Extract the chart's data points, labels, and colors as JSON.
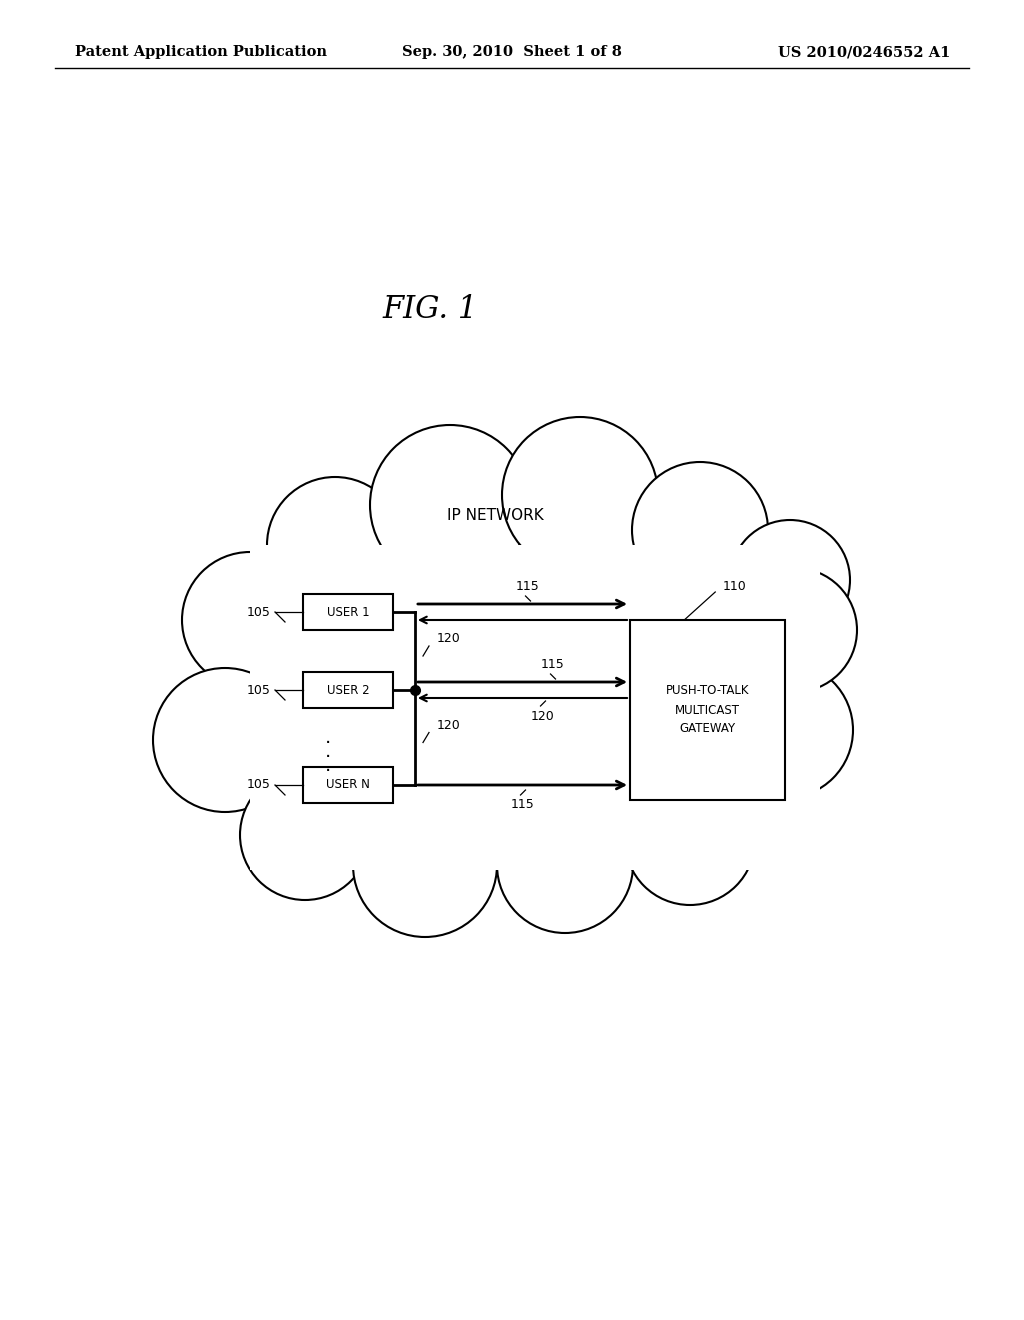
{
  "bg_color": "#ffffff",
  "header_left": "Patent Application Publication",
  "header_mid": "Sep. 30, 2010  Sheet 1 of 8",
  "header_right": "US 2010/0246552 A1",
  "fig_title": "FIG. 1",
  "cloud_label": "IP NETWORK",
  "gateway_label": "PUSH-TO-TALK\nMULTICAST\nGATEWAY",
  "ref_105": "105",
  "ref_110": "110",
  "line_color": "#000000",
  "font_color": "#000000",
  "header_fontsize": 10.5,
  "fig_title_fontsize": 22,
  "label_fontsize": 9,
  "user_fontsize": 8.5,
  "gateway_fontsize": 9
}
